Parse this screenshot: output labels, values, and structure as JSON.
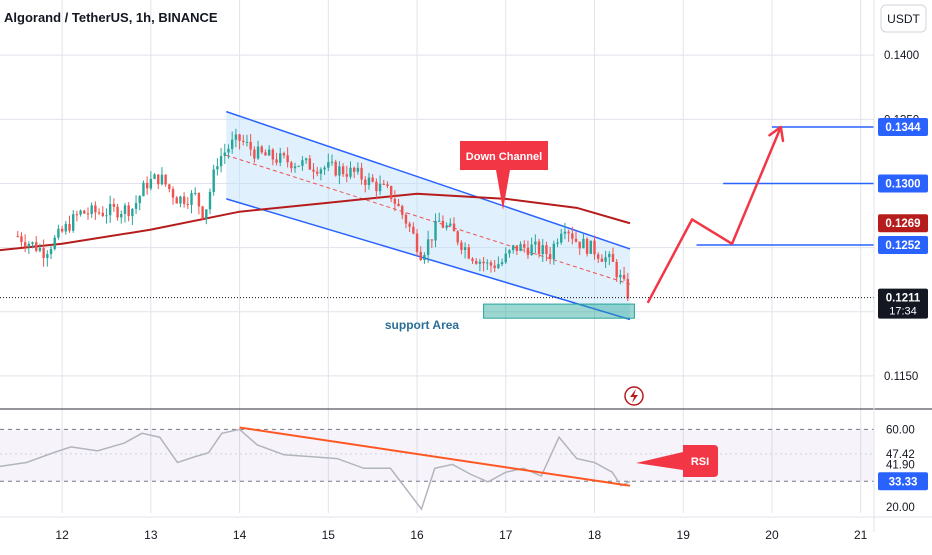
{
  "header": {
    "title": "Algorand / TetherUS, 1h, BINANCE",
    "currency_button": "USDT"
  },
  "colors": {
    "up": "#26a69a",
    "down": "#ef5350",
    "channel_line": "#2962ff",
    "channel_fill": "#bbdefb",
    "moving_average": "#b71c1c",
    "projection_arrow": "#f23645",
    "rsi_line": "#b2b5be",
    "rsi_trendline": "#ff5722",
    "support_area": "#26a69a",
    "grid": "#e0e3eb"
  },
  "chart_data": [
    {
      "type": "candlestick",
      "symbol": "ALGO/USDT",
      "timeframe": "1h",
      "exchange": "BINANCE",
      "x_axis": {
        "ticks": [
          "12",
          "13",
          "14",
          "15",
          "16",
          "17",
          "18",
          "19",
          "20",
          "21"
        ],
        "range": [
          11.3,
          21.15
        ]
      },
      "y_axis": {
        "ticks": [
          "0.1400",
          "0.1350",
          "0.1150"
        ],
        "range": [
          0.1125,
          0.1443
        ]
      },
      "grid": true,
      "ohlc_close_path": [
        {
          "x": 11.5,
          "close": 0.1259
        },
        {
          "x": 11.8,
          "close": 0.1247
        },
        {
          "x": 12.0,
          "close": 0.1262
        },
        {
          "x": 12.2,
          "close": 0.1277
        },
        {
          "x": 12.5,
          "close": 0.1278
        },
        {
          "x": 12.8,
          "close": 0.1281
        },
        {
          "x": 12.95,
          "close": 0.13
        },
        {
          "x": 13.1,
          "close": 0.1305
        },
        {
          "x": 13.3,
          "close": 0.1288
        },
        {
          "x": 13.5,
          "close": 0.129
        },
        {
          "x": 13.6,
          "close": 0.1275
        },
        {
          "x": 13.75,
          "close": 0.1318
        },
        {
          "x": 13.9,
          "close": 0.133
        },
        {
          "x": 14.0,
          "close": 0.1334
        },
        {
          "x": 14.2,
          "close": 0.1323
        },
        {
          "x": 14.5,
          "close": 0.1318
        },
        {
          "x": 14.8,
          "close": 0.1314
        },
        {
          "x": 15.1,
          "close": 0.1311
        },
        {
          "x": 15.3,
          "close": 0.1308
        },
        {
          "x": 15.5,
          "close": 0.13
        },
        {
          "x": 15.7,
          "close": 0.1292
        },
        {
          "x": 15.9,
          "close": 0.1268
        },
        {
          "x": 16.05,
          "close": 0.1245
        },
        {
          "x": 16.25,
          "close": 0.127
        },
        {
          "x": 16.4,
          "close": 0.1262
        },
        {
          "x": 16.6,
          "close": 0.1245
        },
        {
          "x": 16.8,
          "close": 0.1236
        },
        {
          "x": 16.95,
          "close": 0.1238
        },
        {
          "x": 17.1,
          "close": 0.125
        },
        {
          "x": 17.3,
          "close": 0.125
        },
        {
          "x": 17.5,
          "close": 0.1245
        },
        {
          "x": 17.65,
          "close": 0.127
        },
        {
          "x": 17.8,
          "close": 0.1255
        },
        {
          "x": 18.0,
          "close": 0.1248
        },
        {
          "x": 18.2,
          "close": 0.1238
        },
        {
          "x": 18.4,
          "close": 0.1211
        }
      ],
      "moving_average": [
        {
          "x": 11.3,
          "y": 0.1248
        },
        {
          "x": 12.0,
          "y": 0.1253
        },
        {
          "x": 13.0,
          "y": 0.1264
        },
        {
          "x": 14.0,
          "y": 0.1278
        },
        {
          "x": 15.0,
          "y": 0.1285
        },
        {
          "x": 16.0,
          "y": 0.1292
        },
        {
          "x": 17.0,
          "y": 0.1288
        },
        {
          "x": 17.8,
          "y": 0.1281
        },
        {
          "x": 18.4,
          "y": 0.1269
        }
      ],
      "price_labels": [
        {
          "label": "0.1344",
          "value": 0.1344,
          "style": "blue"
        },
        {
          "label": "0.1300",
          "value": 0.13,
          "style": "blue"
        },
        {
          "label": "0.1269",
          "value": 0.1269,
          "style": "maroon"
        },
        {
          "label": "0.1252",
          "value": 0.1252,
          "style": "blue"
        },
        {
          "label": "0.1211",
          "value": 0.1211,
          "style": "black",
          "sub": "17:34"
        }
      ],
      "target_lines": [
        {
          "value": 0.1344,
          "x_from": 20.0,
          "x_to": 21.15
        },
        {
          "value": 0.13,
          "x_from": 19.45,
          "x_to": 21.15
        },
        {
          "value": 0.1252,
          "x_from": 19.15,
          "x_to": 21.15
        }
      ],
      "last_price_line": {
        "value": 0.1211
      },
      "down_channel": {
        "upper": [
          {
            "x": 13.85,
            "y": 0.1356
          },
          {
            "x": 18.4,
            "y": 0.1249
          }
        ],
        "lower": [
          {
            "x": 13.85,
            "y": 0.1288
          },
          {
            "x": 18.4,
            "y": 0.1194
          }
        ]
      },
      "support_area": {
        "x_from": 16.75,
        "x_to": 18.45,
        "y_from": 0.1195,
        "y_to": 0.1206
      },
      "projection_path": [
        {
          "x": 18.6,
          "y": 0.1207
        },
        {
          "x": 19.1,
          "y": 0.1272
        },
        {
          "x": 19.55,
          "y": 0.1253
        },
        {
          "x": 20.1,
          "y": 0.1344
        }
      ],
      "annotations": [
        {
          "text": "Down Channel",
          "x": 17.0,
          "y": 0.1321
        },
        {
          "text": "support Area",
          "x": 16.05,
          "y": 0.1196
        }
      ]
    },
    {
      "type": "line",
      "indicator": "RSI",
      "y_axis": {
        "ticks": [
          "47.42",
          "41.90",
          "20.00"
        ],
        "range": [
          17,
          70
        ]
      },
      "levels": [
        {
          "label": "60.00",
          "value": 60
        },
        {
          "label": "33.33",
          "value": 33.33
        }
      ],
      "rsi_badge": {
        "label": "33.33",
        "value": 33.33
      },
      "series": [
        {
          "x": 11.3,
          "y": 41
        },
        {
          "x": 11.6,
          "y": 43
        },
        {
          "x": 11.9,
          "y": 48
        },
        {
          "x": 12.1,
          "y": 51
        },
        {
          "x": 12.4,
          "y": 49
        },
        {
          "x": 12.7,
          "y": 53
        },
        {
          "x": 12.9,
          "y": 58
        },
        {
          "x": 13.1,
          "y": 56
        },
        {
          "x": 13.3,
          "y": 43
        },
        {
          "x": 13.5,
          "y": 46
        },
        {
          "x": 13.65,
          "y": 48
        },
        {
          "x": 13.8,
          "y": 58
        },
        {
          "x": 14.0,
          "y": 60
        },
        {
          "x": 14.2,
          "y": 52
        },
        {
          "x": 14.5,
          "y": 47
        },
        {
          "x": 14.8,
          "y": 46
        },
        {
          "x": 15.1,
          "y": 45
        },
        {
          "x": 15.4,
          "y": 40
        },
        {
          "x": 15.7,
          "y": 40
        },
        {
          "x": 15.9,
          "y": 28
        },
        {
          "x": 16.05,
          "y": 19
        },
        {
          "x": 16.2,
          "y": 40
        },
        {
          "x": 16.4,
          "y": 42
        },
        {
          "x": 16.6,
          "y": 37
        },
        {
          "x": 16.8,
          "y": 33
        },
        {
          "x": 17.0,
          "y": 38
        },
        {
          "x": 17.2,
          "y": 40
        },
        {
          "x": 17.4,
          "y": 36
        },
        {
          "x": 17.6,
          "y": 56
        },
        {
          "x": 17.8,
          "y": 45
        },
        {
          "x": 18.0,
          "y": 43
        },
        {
          "x": 18.2,
          "y": 38
        },
        {
          "x": 18.3,
          "y": 31
        },
        {
          "x": 18.4,
          "y": 33.3
        }
      ],
      "trendline": [
        {
          "x": 14.0,
          "y": 61
        },
        {
          "x": 18.4,
          "y": 31
        }
      ],
      "annotation": {
        "text": "RSI",
        "x": 19.2,
        "y": 42
      }
    }
  ]
}
